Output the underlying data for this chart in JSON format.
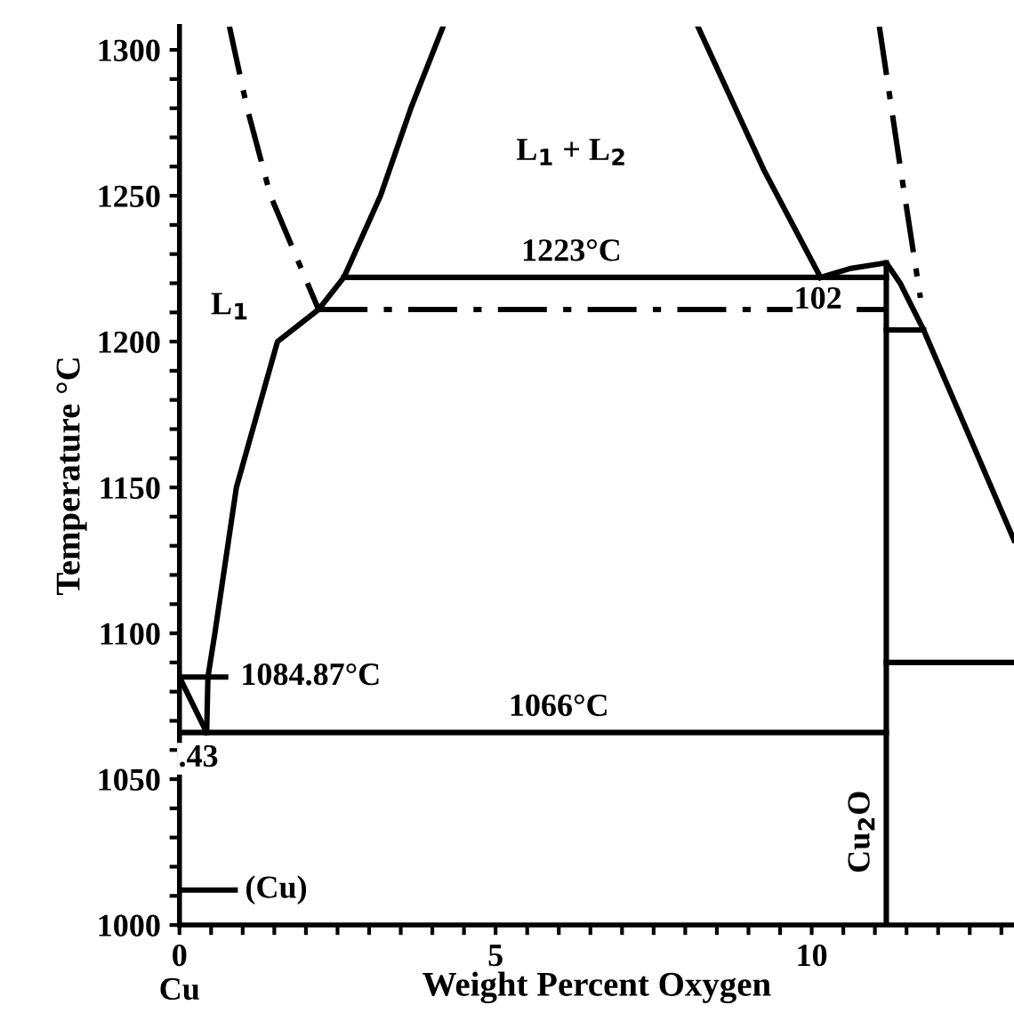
{
  "chart_data": {
    "type": "line",
    "xlabel": "Weight Percent Oxygen",
    "ylabel": "Temperature °C",
    "xlim": [
      0,
      13.2
    ],
    "ylim": [
      1000,
      1308
    ],
    "xticks": [
      {
        "value": 0,
        "label": "0\nCu"
      },
      {
        "value": 0.5,
        "label": null
      },
      {
        "value": 1,
        "label": null
      },
      {
        "value": 1.5,
        "label": null
      },
      {
        "value": 2,
        "label": null
      },
      {
        "value": 2.5,
        "label": null
      },
      {
        "value": 3,
        "label": null
      },
      {
        "value": 3.5,
        "label": null
      },
      {
        "value": 4,
        "label": null
      },
      {
        "value": 4.5,
        "label": null
      },
      5,
      {
        "value": 5.5,
        "label": null
      },
      {
        "value": 6,
        "label": null
      },
      {
        "value": 6.5,
        "label": null
      },
      {
        "value": 7,
        "label": null
      },
      {
        "value": 7.5,
        "label": null
      },
      {
        "value": 8,
        "label": null
      },
      {
        "value": 8.5,
        "label": null
      },
      {
        "value": 9,
        "label": null
      },
      {
        "value": 9.5,
        "label": null
      },
      10,
      {
        "value": 10.5,
        "label": null
      },
      {
        "value": 11,
        "label": null
      },
      {
        "value": 11.5,
        "label": null
      },
      {
        "value": 12,
        "label": null
      },
      {
        "value": 12.5,
        "label": null
      },
      {
        "value": 13,
        "label": null
      }
    ],
    "yticks": [
      1000,
      {
        "value": 1010,
        "label": null
      },
      {
        "value": 1020,
        "label": null
      },
      {
        "value": 1030,
        "label": null
      },
      {
        "value": 1040,
        "label": null
      },
      1050,
      {
        "value": 1060,
        "label": null
      },
      {
        "value": 1070,
        "label": null
      },
      {
        "value": 1080,
        "label": null
      },
      {
        "value": 1090,
        "label": null
      },
      1100,
      {
        "value": 1110,
        "label": null
      },
      {
        "value": 1120,
        "label": null
      },
      {
        "value": 1130,
        "label": null
      },
      {
        "value": 1140,
        "label": null
      },
      1150,
      {
        "value": 1160,
        "label": null
      },
      {
        "value": 1170,
        "label": null
      },
      {
        "value": 1180,
        "label": null
      },
      {
        "value": 1190,
        "label": null
      },
      1200,
      {
        "value": 1210,
        "label": null
      },
      {
        "value": 1220,
        "label": null
      },
      {
        "value": 1230,
        "label": null
      },
      {
        "value": 1240,
        "label": null
      },
      1250,
      {
        "value": 1260,
        "label": null
      },
      {
        "value": 1270,
        "label": null
      },
      {
        "value": 1280,
        "label": null
      },
      {
        "value": 1290,
        "label": null
      },
      1300
    ],
    "grid": false,
    "legend": false,
    "marker": "none",
    "series": [
      {
        "color": "#000000",
        "line_style": "solid",
        "x": [
          0.43,
          0.45,
          0.56,
          0.9,
          1.55,
          2.2,
          2.6,
          3.18,
          3.66,
          4.17
        ],
        "values": [
          1066,
          1085,
          1100,
          1150,
          1200,
          1211,
          1222,
          1250,
          1280,
          1308
        ]
      },
      {
        "color": "#000000",
        "line_style": "solid",
        "x": [
          8.2,
          9.24,
          10.14
        ],
        "values": [
          1308,
          1259,
          1222
        ]
      },
      {
        "color": "#000000",
        "line_style": "dashed",
        "x": [
          0.79,
          1.07,
          1.44,
          2.2
        ],
        "values": [
          1308,
          1280,
          1250,
          1211
        ]
      },
      {
        "color": "#000000",
        "line_style": "dashed",
        "x": [
          11.07,
          11.4,
          11.72
        ],
        "values": [
          1308,
          1260,
          1215
        ]
      },
      {
        "color": "#000000",
        "line_style": "solid",
        "x": [
          2.6,
          11.18
        ],
        "values": [
          1222,
          1222
        ]
      },
      {
        "color": "#000000",
        "line_style": "solid",
        "x": [
          10.14,
          10.6,
          11.18,
          11.4,
          11.77,
          13.2
        ],
        "values": [
          1222,
          1225,
          1227,
          1220,
          1204,
          1132
        ]
      },
      {
        "color": "#000000",
        "line_style": "dashed",
        "x": [
          2.2,
          11.18
        ],
        "values": [
          1211,
          1211
        ]
      },
      {
        "color": "#000000",
        "line_style": "solid",
        "x": [
          11.18,
          11.77
        ],
        "values": [
          1204,
          1204
        ]
      },
      {
        "color": "#000000",
        "line_style": "solid",
        "x": [
          11.18,
          11.18
        ],
        "values": [
          1000,
          1227
        ]
      },
      {
        "color": "#000000",
        "line_style": "solid",
        "x": [
          0,
          11.18
        ],
        "values": [
          1066,
          1066
        ]
      },
      {
        "color": "#000000",
        "line_style": "solid",
        "x": [
          11.18,
          13.2
        ],
        "values": [
          1090,
          1090
        ]
      },
      {
        "color": "#000000",
        "line_style": "solid",
        "x": [
          0,
          0.43
        ],
        "values": [
          1085,
          1066
        ]
      },
      {
        "color": "#000000",
        "line_style": "solid",
        "x": [
          0,
          0.73
        ],
        "values": [
          1085,
          1085
        ]
      },
      {
        "color": "#000000",
        "line_style": "solid",
        "x": [
          0,
          0.88
        ],
        "values": [
          1012,
          1012
        ]
      }
    ],
    "annotations": [
      {
        "text": "L$_{1}$",
        "x": 0.8,
        "y": 1212
      },
      "L$_{1}$ + L$_{2}$",
      {
        "text": "1223°C",
        "x": 6.2,
        "y": 1222
      },
      {
        "text": "102",
        "x": 10.1,
        "y": 1214
      },
      {
        "text": "1084.87°C",
        "x": 0.73,
        "y": 1085
      },
      {
        "text": "1066°C",
        "x": 6.0,
        "y": 1066
      },
      {
        "text": ".43",
        "x": 0.3,
        "y": 1057
      },
      {
        "text": "(Cu)",
        "x": 0.88,
        "y": 1012
      },
      {
        "text": "Cu$_{2}$O",
        "x": 11.18,
        "y": 1032
      }
    ]
  }
}
